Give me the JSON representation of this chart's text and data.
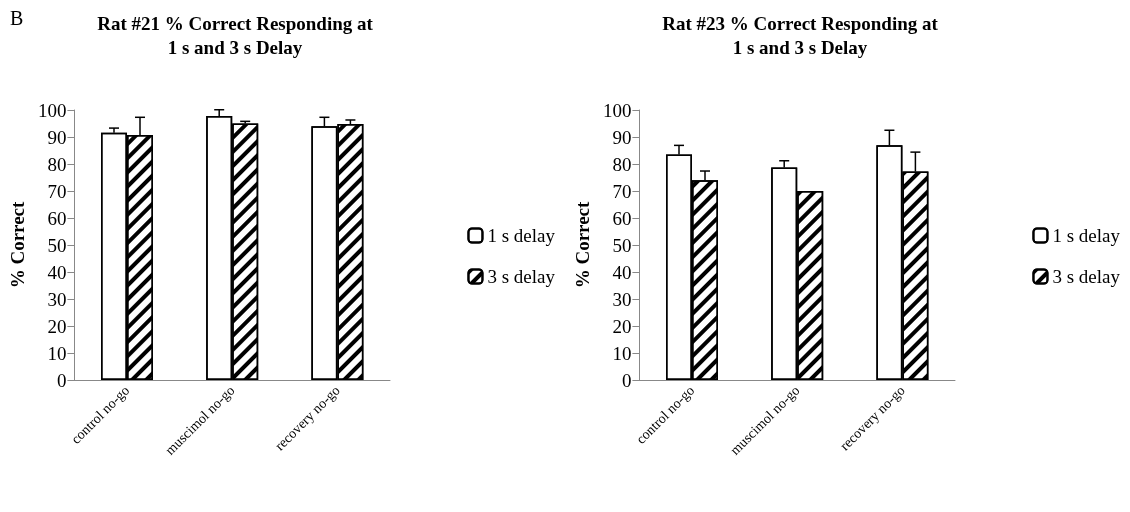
{
  "chart_data": [
    {
      "type": "bar",
      "title": "Rat #21 % Correct Responding at\n1 s and 3 s Delay",
      "ylabel": "% Correct",
      "annotations": [
        "B"
      ],
      "categories": [
        "control no-go",
        "muscimol no-go",
        "recovery no-go"
      ],
      "series": [
        {
          "name": "1 s delay",
          "color": "#ffffff",
          "values": [
            91.6,
            97.8,
            94.0
          ],
          "errors": [
            1.7,
            2.3,
            3.3
          ]
        },
        {
          "name": "3 s delay",
          "color": "#ffffff",
          "values": [
            90.7,
            95.0,
            94.8
          ],
          "errors": [
            6.6,
            0.8,
            1.5
          ]
        }
      ],
      "ylim": [
        0,
        100
      ],
      "yticks": [
        0,
        10,
        20,
        30,
        40,
        50,
        60,
        70,
        80,
        90,
        100
      ],
      "grid": false,
      "legend": "right"
    },
    {
      "type": "bar",
      "title": "Rat #23 % Correct Responding at\n1 s and 3 s Delay",
      "ylabel": "% Correct",
      "categories": [
        "control no-go",
        "muscimol no-go",
        "recovery no-go"
      ],
      "series": [
        {
          "name": "1 s delay",
          "color": "#ffffff",
          "values": [
            83.5,
            78.7,
            86.9
          ],
          "errors": [
            3.4,
            2.5,
            5.6
          ]
        },
        {
          "name": "3 s delay",
          "color": "#ffffff",
          "values": [
            74.0,
            70.0,
            77.2
          ],
          "errors": [
            3.4,
            null,
            7.2
          ]
        }
      ],
      "ylim": [
        0,
        100
      ],
      "yticks": [
        0,
        10,
        20,
        30,
        40,
        50,
        60,
        70,
        80,
        90,
        100
      ],
      "grid": false,
      "legend": "right"
    }
  ]
}
